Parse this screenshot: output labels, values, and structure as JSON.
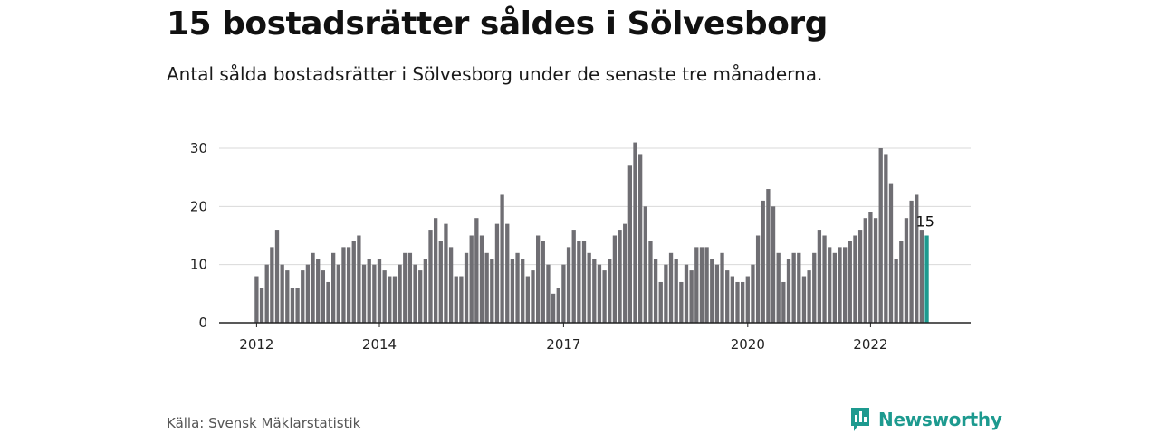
{
  "header": {
    "title": "15 bostadsrätter såldes i Sölvesborg",
    "subtitle": "Antal sålda bostadsrätter i Sölvesborg under de senaste tre månaderna."
  },
  "footer": {
    "source": "Källa: Svensk Mäklarstatistik",
    "brand": "Newsworthy",
    "brand_icon": "newsworthy-logo-icon"
  },
  "colors": {
    "bar": "#6f6e73",
    "highlight": "#1d9a8f",
    "grid": "#d9d9d9",
    "axis": "#222222",
    "brand": "#1d9a8f"
  },
  "chart_data": {
    "type": "bar",
    "title": "15 bostadsrätter såldes i Sölvesborg",
    "subtitle": "Antal sålda bostadsrätter i Sölvesborg under de senaste tre månaderna.",
    "x_start": "2012-01",
    "x_interval": "month",
    "x_ticks": [
      "2012",
      "2014",
      "2017",
      "2020",
      "2022"
    ],
    "y_ticks": [
      0,
      10,
      20,
      30
    ],
    "ylim": [
      0,
      32
    ],
    "grid": true,
    "values": [
      8,
      6,
      10,
      13,
      16,
      10,
      9,
      6,
      6,
      9,
      10,
      12,
      11,
      9,
      7,
      12,
      10,
      13,
      13,
      14,
      15,
      10,
      11,
      10,
      11,
      9,
      8,
      8,
      10,
      12,
      12,
      10,
      9,
      11,
      16,
      18,
      14,
      17,
      13,
      8,
      8,
      12,
      15,
      18,
      15,
      12,
      11,
      17,
      22,
      17,
      11,
      12,
      11,
      8,
      9,
      15,
      14,
      10,
      5,
      6,
      10,
      13,
      16,
      14,
      14,
      12,
      11,
      10,
      9,
      11,
      15,
      16,
      17,
      27,
      31,
      29,
      20,
      14,
      11,
      7,
      10,
      12,
      11,
      7,
      10,
      9,
      13,
      13,
      13,
      11,
      10,
      12,
      9,
      8,
      7,
      7,
      8,
      10,
      15,
      21,
      23,
      20,
      12,
      7,
      11,
      12,
      12,
      8,
      9,
      12,
      16,
      15,
      13,
      12,
      13,
      13,
      14,
      15,
      16,
      18,
      19,
      18,
      30,
      29,
      24,
      11,
      14,
      18,
      21,
      22,
      16,
      15
    ],
    "highlight_last": true,
    "last_value_label": "15"
  }
}
